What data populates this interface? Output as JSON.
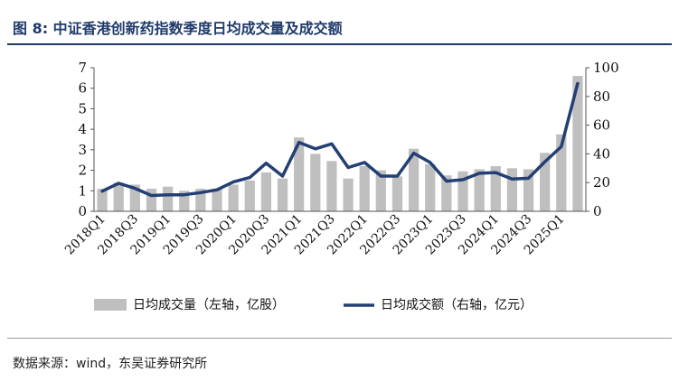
{
  "figure_title": "图 8:  中证香港创新药指数季度日均成交量及成交额",
  "source": "数据来源：wind，东吴证券研究所",
  "chart_data": {
    "type": "bar+line",
    "categories": [
      "2018Q1",
      "2018Q2",
      "2018Q3",
      "2018Q4",
      "2019Q1",
      "2019Q2",
      "2019Q3",
      "2019Q4",
      "2020Q1",
      "2020Q2",
      "2020Q3",
      "2020Q4",
      "2021Q1",
      "2021Q2",
      "2021Q3",
      "2021Q4",
      "2022Q1",
      "2022Q2",
      "2022Q3",
      "2022Q4",
      "2023Q1",
      "2023Q2",
      "2023Q3",
      "2023Q4",
      "2024Q1",
      "2024Q2",
      "2024Q3",
      "2024Q4",
      "2025Q1",
      "2025Q2"
    ],
    "x_tick_labels": [
      "2018Q1",
      "2018Q3",
      "2019Q1",
      "2019Q3",
      "2020Q1",
      "2020Q3",
      "2021Q1",
      "2021Q3",
      "2022Q1",
      "2022Q3",
      "2023Q1",
      "2023Q3",
      "2024Q1",
      "2024Q3",
      "2025Q1"
    ],
    "series": [
      {
        "name": "日均成交量（左轴，亿股）",
        "type": "bar",
        "axis": "left",
        "color": "#bfbfbf",
        "values": [
          1.1,
          1.4,
          1.3,
          1.1,
          1.2,
          1.0,
          1.1,
          1.1,
          1.3,
          1.5,
          1.9,
          1.6,
          3.6,
          2.8,
          2.45,
          1.6,
          2.2,
          2.0,
          1.7,
          3.05,
          2.3,
          1.75,
          1.95,
          2.05,
          2.2,
          2.1,
          2.05,
          2.85,
          3.75,
          6.6
        ]
      },
      {
        "name": "日均成交额（右轴，亿元）",
        "type": "line",
        "axis": "right",
        "color": "#243f73",
        "values": [
          14,
          19.5,
          16,
          11,
          11.5,
          11.5,
          13,
          15,
          20.5,
          23.5,
          33.5,
          24.5,
          48,
          43.5,
          47,
          30.5,
          34,
          24.5,
          24.5,
          40.5,
          34,
          21,
          22,
          26.5,
          27,
          22.5,
          23,
          34.5,
          45,
          89
        ]
      }
    ],
    "y_left": {
      "min": 0,
      "max": 7,
      "ticks": [
        0,
        1,
        2,
        3,
        4,
        5,
        6,
        7
      ]
    },
    "y_right": {
      "min": 0,
      "max": 100,
      "ticks": [
        0,
        20,
        40,
        60,
        80,
        100
      ]
    },
    "legend_position": "bottom",
    "grid": false
  }
}
